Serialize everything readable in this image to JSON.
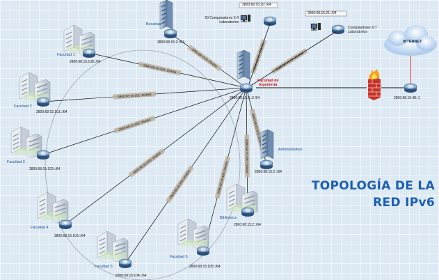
{
  "title": {
    "line1": "TOPOLOGÍA DE LA",
    "line2": "RED IPv6"
  },
  "internet": {
    "label": "INTERNET"
  },
  "core": {
    "label": "Facultad de Ingeniería",
    "line1": "Facultad de",
    "line2": "Ingeniería",
    "ip": "2800:68:15:2::3 /64"
  },
  "border_router": {
    "ip": "2800:68:15:48::1"
  },
  "labs": [
    {
      "top_ip": "2800:68:15:20::/64",
      "line1": "50 Computadores X:4",
      "line2": "Laboratorios",
      "link": "2800:68:15::254/64"
    },
    {
      "top_ip": "2800:68:15:21::/64",
      "line1": "Computadores X:7",
      "line2": "Laboratorios",
      "link": "2800:68:15:17::254/64"
    }
  ],
  "sites": [
    {
      "name": "Becarias",
      "ip": "2800:68:15:2::/64",
      "link": "2800:68:15:B::254/64"
    },
    {
      "name": "Facultad 1",
      "ip": "2800:68:15:100::/64",
      "link": "2800:68:15:100::254/64"
    },
    {
      "name": "Facultad 2",
      "ip": "2800:68:15:101::/64",
      "link": "2800:68:15:101::254/64"
    },
    {
      "name": "Facultad 3",
      "ip": "2800:68:15:102::/64",
      "link": "2800:68:15:102::254/64"
    },
    {
      "name": "Facultad 4",
      "ip": "2800:68:15:103::/64",
      "link": "2800:68:15:103::254/64"
    },
    {
      "name": "Facultad 5",
      "ip": "2800:68:15:104::/64",
      "link": "2800:68:15:104::254/64"
    },
    {
      "name": "Facultad 6",
      "ip": "2800:68:15:105::/64",
      "link": "2800:68:15:105::254/64"
    },
    {
      "name": "Biblioteca",
      "ip": "2800:68:15:2::/64",
      "link": "2800:68:15:105::254/64"
    },
    {
      "name": "Administrativo",
      "ip": "2800:68:15:2::/64",
      "link": "2800:68:15:103::254/64"
    }
  ],
  "colors": {
    "title": "#1b5fb5",
    "core_label": "#cc1010",
    "site_label": "#1f4e9a",
    "internet_link": "#d93030",
    "link_label_bg": "#bdb3a0"
  }
}
